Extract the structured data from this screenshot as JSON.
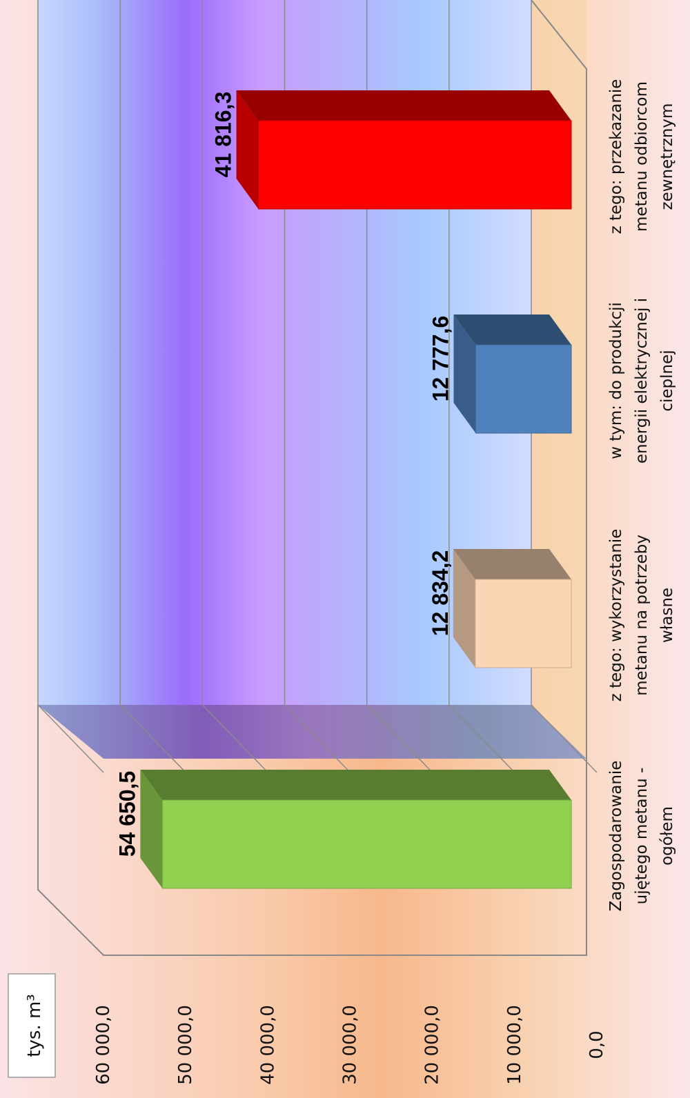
{
  "chart_data": {
    "type": "bar",
    "title": "",
    "unit_label": "tys. m³",
    "categories": [
      [
        "Zagospodarowanie",
        "ujętego metanu -",
        "ogółem"
      ],
      [
        "z tego: wykorzystanie",
        "metanu na potrzeby",
        "własne"
      ],
      [
        "w tym: do produkcji",
        "energii elektrycznej i",
        "cieplnej"
      ],
      [
        "z tego: przekazanie",
        "metanu odbiorcom",
        "zewnętrznym"
      ]
    ],
    "values": [
      54650.5,
      12834.2,
      12777.6,
      41816.3
    ],
    "value_labels": [
      "54 650,5",
      "12 834,2",
      "12 777,6",
      "41 816,3"
    ],
    "colors": [
      "#92d050",
      "#fcd5b4",
      "#4f81bd",
      "#ff0000"
    ],
    "ylim": [
      0,
      60000
    ],
    "yticks": [
      0,
      10000,
      20000,
      30000,
      40000,
      50000,
      60000
    ],
    "ytick_labels": [
      "0,0",
      "10 000,0",
      "20 000,0",
      "30 000,0",
      "40 000,0",
      "50 000,0",
      "60 000,0"
    ],
    "grid": true,
    "orientation": "rotated-90"
  }
}
